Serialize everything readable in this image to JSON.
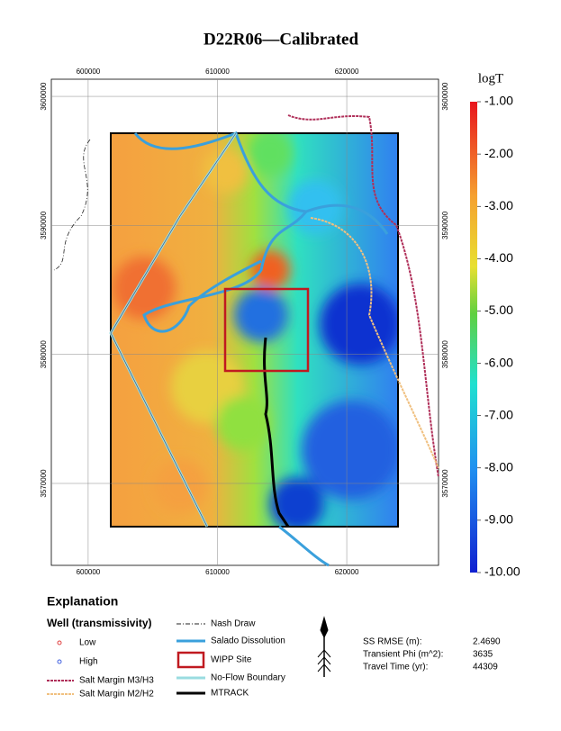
{
  "title": "D22R06—Calibrated",
  "map": {
    "xlim": [
      597150,
      627100
    ],
    "ylim": [
      3563650,
      3601330
    ],
    "xticks": [
      600000,
      610000,
      620000
    ],
    "yticks": [
      3600000,
      3590000,
      3580000,
      3570000
    ],
    "grid": true
  },
  "colorbar": {
    "title": "logT",
    "lim": [
      -10,
      -1
    ],
    "ticks": [
      {
        "value": -1,
        "label": "-1.00"
      },
      {
        "value": -2,
        "label": "-2.00"
      },
      {
        "value": -3,
        "label": "-3.00"
      },
      {
        "value": -4,
        "label": "-4.00"
      },
      {
        "value": -5,
        "label": "-5.00"
      },
      {
        "value": -6,
        "label": "-6.00"
      },
      {
        "value": -7,
        "label": "-7.00"
      },
      {
        "value": -8,
        "label": "-8.00"
      },
      {
        "value": -9,
        "label": "-9.00"
      },
      {
        "value": -10,
        "label": "-10.00"
      }
    ]
  },
  "legend": {
    "title": "Explanation",
    "subtitle": "Well (transmissivity)",
    "items": [
      "Low",
      "High",
      "Salt Margin M3/H3",
      "Salt Margin M2/H2",
      "Nash Draw",
      "Salado Dissolution",
      "WIPP Site",
      "No-Flow Boundary",
      "MTRACK"
    ]
  },
  "stats": [
    {
      "label": "SS RMSE (m):",
      "value": 2.469,
      "value_label": "2.4690"
    },
    {
      "label": "Transient Phi (m^2):",
      "value": 3635
    },
    {
      "label": "Travel Time (yr):",
      "value": 44309
    }
  ]
}
